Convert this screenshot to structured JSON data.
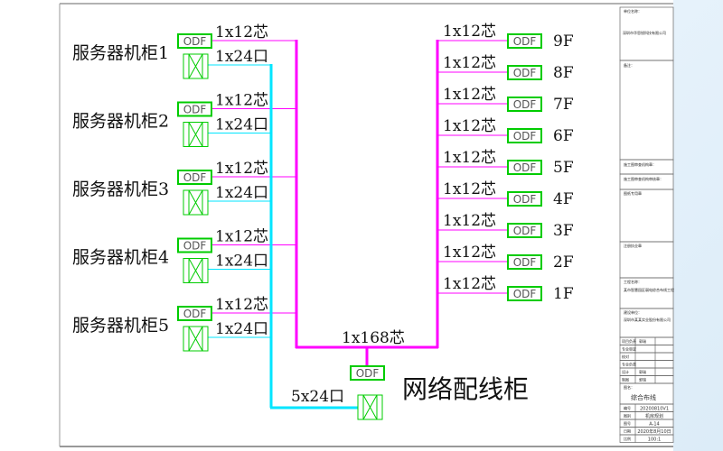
{
  "diagram": {
    "title": "网络配线柜",
    "trunk_label": "1x168芯",
    "copper_trunk_label": "5x24口",
    "odf_label": "ODF",
    "racks": [
      {
        "name": "服务器机柜1",
        "fiber": "1x12芯",
        "copper": "1x24口"
      },
      {
        "name": "服务器机柜2",
        "fiber": "1x12芯",
        "copper": "1x24口"
      },
      {
        "name": "服务器机柜3",
        "fiber": "1x12芯",
        "copper": "1x24口"
      },
      {
        "name": "服务器机柜4",
        "fiber": "1x12芯",
        "copper": "1x24口"
      },
      {
        "name": "服务器机柜5",
        "fiber": "1x12芯",
        "copper": "1x24口"
      }
    ],
    "floors": [
      {
        "name": "9F",
        "fiber": "1x12芯"
      },
      {
        "name": "8F",
        "fiber": "1x12芯"
      },
      {
        "name": "7F",
        "fiber": "1x12芯"
      },
      {
        "name": "6F",
        "fiber": "1x12芯"
      },
      {
        "name": "5F",
        "fiber": "1x12芯"
      },
      {
        "name": "4F",
        "fiber": "1x12芯"
      },
      {
        "name": "3F",
        "fiber": "1x12芯"
      },
      {
        "name": "2F",
        "fiber": "1x12芯"
      },
      {
        "name": "1F",
        "fiber": "1x12芯"
      }
    ],
    "colors": {
      "fiber": "#ff00ff",
      "copper": "#00e5ff",
      "equipment": "#00cc00"
    }
  },
  "title_block": {
    "design_unit_label": "单位名称：",
    "design_unit": "深圳市华思锐科技有限公司",
    "notes_label": "备注：",
    "row1_label": "施工图审查机构章：",
    "row2_label": "施工图审查机构审核章：",
    "row3_label": "图纸专用章",
    "row4_label": "注册执业章",
    "project_label": "工程名称：",
    "project": "某市智慧园区弱电综合布线工程",
    "client_label": "建设单位：",
    "client": "深圳市某某实业股份有限公司",
    "sign_rows": [
      {
        "label": "项目负责",
        "value": "郭瑞"
      },
      {
        "label": "专业审定",
        "value": ""
      },
      {
        "label": "校对",
        "value": ""
      },
      {
        "label": "专业负责",
        "value": ""
      },
      {
        "label": "设计",
        "value": "郭瑞"
      },
      {
        "label": "制图",
        "value": "郭瑞"
      }
    ],
    "drawing_name_label": "图名：",
    "drawing_name": "综合布线",
    "info_rows": [
      {
        "label": "编号",
        "value": "20200810V1"
      },
      {
        "label": "图别",
        "value": "机房规划"
      },
      {
        "label": "图号",
        "value": "A-14"
      },
      {
        "label": "日期",
        "value": "2020年8月10日"
      },
      {
        "label": "比例",
        "value": "100:1"
      }
    ]
  }
}
